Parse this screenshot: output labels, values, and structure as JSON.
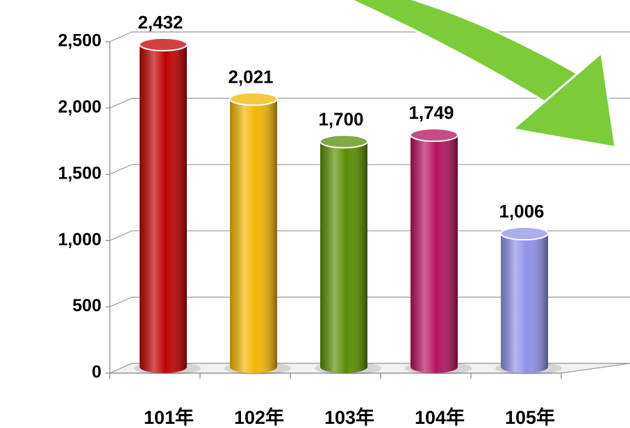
{
  "chart_data": {
    "type": "bar",
    "categories": [
      "101年",
      "102年",
      "103年",
      "104年",
      "105年"
    ],
    "values": [
      2432,
      2021,
      1700,
      1749,
      1006
    ],
    "value_labels": [
      "2,432",
      "2,021",
      "1,700",
      "1,749",
      "1,006"
    ],
    "colors": [
      "#c00000",
      "#f2b600",
      "#5b8c00",
      "#b5125e",
      "#9090ea"
    ],
    "ylim": [
      0,
      2500
    ],
    "yticks": [
      0,
      500,
      {
        "value": 1000,
        "label": "1,000"
      },
      {
        "value": 1500,
        "label": "1,500"
      },
      {
        "value": 2000,
        "label": "2,000"
      },
      {
        "value": 2500,
        "label": "2,500"
      }
    ],
    "grid": true
  }
}
